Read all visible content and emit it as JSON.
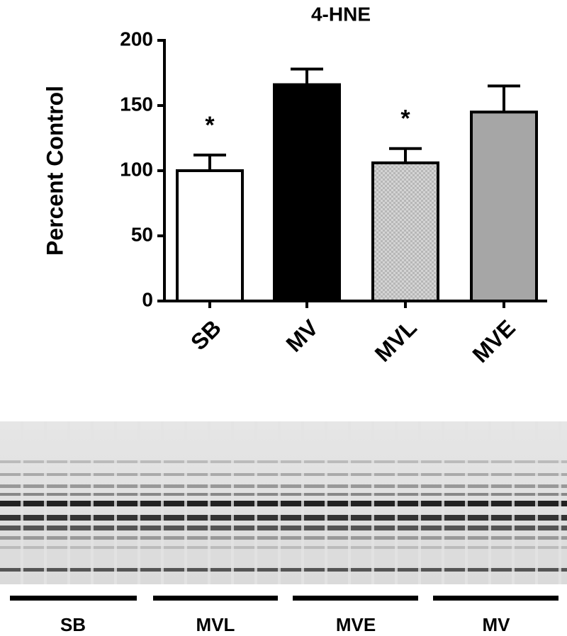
{
  "chart_data": {
    "type": "bar",
    "title": "4-HNE",
    "ylabel": "Percent Control",
    "categories": [
      "SB",
      "MV",
      "MVL",
      "MVE"
    ],
    "values": [
      100,
      166,
      106,
      145
    ],
    "errors": [
      12,
      12,
      11,
      20
    ],
    "colors": [
      "#ffffff",
      "#000000",
      "#d4d4d4",
      "#a6a6a6"
    ],
    "annotations": [
      "*",
      null,
      "*",
      null
    ],
    "ylim": [
      0,
      200
    ],
    "yticks": [
      0,
      50,
      100,
      150,
      200
    ],
    "grid": false
  },
  "blot": {
    "lanes": [
      "SB",
      "MVL",
      "MVE",
      "MV"
    ]
  }
}
